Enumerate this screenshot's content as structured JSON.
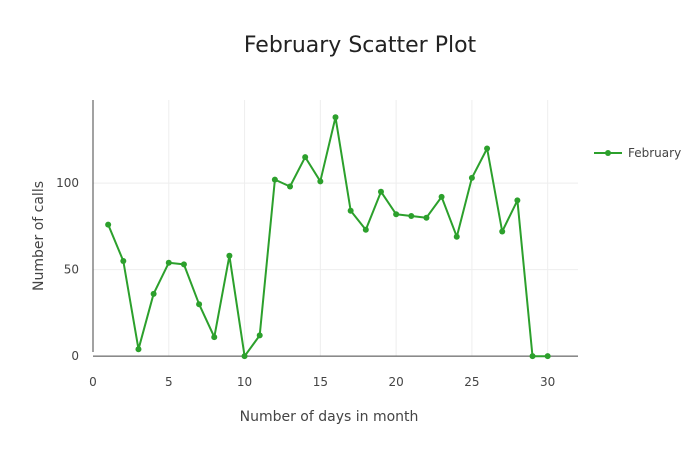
{
  "chart_data": {
    "type": "line",
    "title": "February Scatter Plot",
    "xlabel": "Number of days in month",
    "ylabel": "Number of calls",
    "xlim": [
      0,
      32
    ],
    "ylim": [
      -8,
      148
    ],
    "xticks": [
      0,
      5,
      10,
      15,
      20,
      25,
      30
    ],
    "yticks": [
      0,
      50,
      100
    ],
    "grid": true,
    "legend_position": "right",
    "series": [
      {
        "name": "February",
        "color": "#2ca02c",
        "x": [
          1,
          2,
          3,
          4,
          5,
          6,
          7,
          8,
          9,
          10,
          11,
          12,
          13,
          14,
          15,
          16,
          17,
          18,
          19,
          20,
          21,
          22,
          23,
          24,
          25,
          26,
          27,
          28,
          29,
          30
        ],
        "y": [
          76,
          55,
          4,
          36,
          54,
          53,
          30,
          11,
          58,
          0,
          12,
          102,
          98,
          115,
          101,
          138,
          84,
          73,
          95,
          82,
          81,
          80,
          92,
          69,
          103,
          120,
          72,
          90,
          0,
          0
        ]
      }
    ]
  }
}
